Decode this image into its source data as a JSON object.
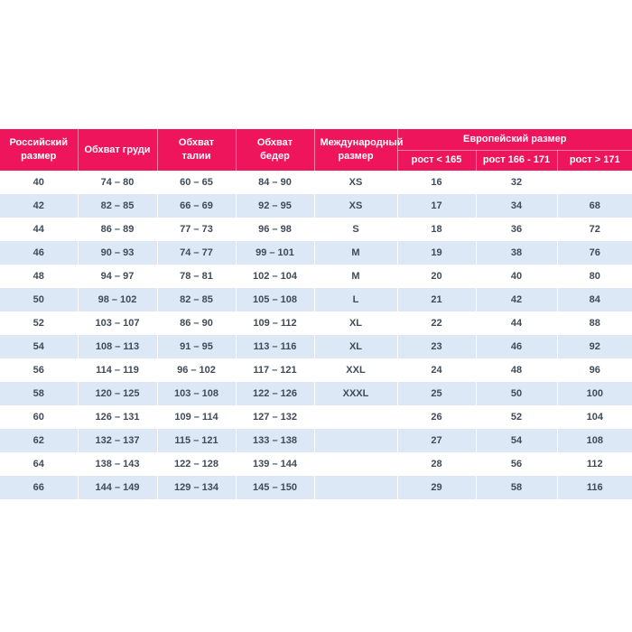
{
  "colors": {
    "header_bg": "#ee155d",
    "header_text": "#ffffff",
    "row_alt_bg": "#dce8f5",
    "cell_text": "#3f4b58",
    "divider": "#ffffff"
  },
  "chart_data": {
    "type": "table",
    "title": "",
    "headers": [
      "Российский размер",
      "Обхват груди",
      "Обхват талии",
      "Обхват бедер",
      "Международный размер"
    ],
    "euro_group_header": "Европейский размер",
    "euro_sub_headers": [
      "рост < 165",
      "рост 166 - 171",
      "рост > 171"
    ],
    "rows": [
      [
        "40",
        "74 – 80",
        "60 – 65",
        "84 – 90",
        "XS",
        "16",
        "32",
        ""
      ],
      [
        "42",
        "82 – 85",
        "66 – 69",
        "92 – 95",
        "XS",
        "17",
        "34",
        "68"
      ],
      [
        "44",
        "86 – 89",
        "77 – 73",
        "96 – 98",
        "S",
        "18",
        "36",
        "72"
      ],
      [
        "46",
        "90 – 93",
        "74 – 77",
        "99 – 101",
        "M",
        "19",
        "38",
        "76"
      ],
      [
        "48",
        "94 – 97",
        "78 – 81",
        "102 – 104",
        "M",
        "20",
        "40",
        "80"
      ],
      [
        "50",
        "98 – 102",
        "82 – 85",
        "105 – 108",
        "L",
        "21",
        "42",
        "84"
      ],
      [
        "52",
        "103 – 107",
        "86 – 90",
        "109 – 112",
        "XL",
        "22",
        "44",
        "88"
      ],
      [
        "54",
        "108 – 113",
        "91 – 95",
        "113 – 116",
        "XL",
        "23",
        "46",
        "92"
      ],
      [
        "56",
        "114 – 119",
        "96 – 102",
        "117 – 121",
        "XXL",
        "24",
        "48",
        "96"
      ],
      [
        "58",
        "120 – 125",
        "103 – 108",
        "122 – 126",
        "XXXL",
        "25",
        "50",
        "100"
      ],
      [
        "60",
        "126 – 131",
        "109 – 114",
        "127 – 132",
        "",
        "26",
        "52",
        "104"
      ],
      [
        "62",
        "132 – 137",
        "115 – 121",
        "133 – 138",
        "",
        "27",
        "54",
        "108"
      ],
      [
        "64",
        "138 – 143",
        "122 – 128",
        "139 – 144",
        "",
        "28",
        "56",
        "112"
      ],
      [
        "66",
        "144 – 149",
        "129 – 134",
        "145 – 150",
        "",
        "29",
        "58",
        "116"
      ]
    ]
  }
}
